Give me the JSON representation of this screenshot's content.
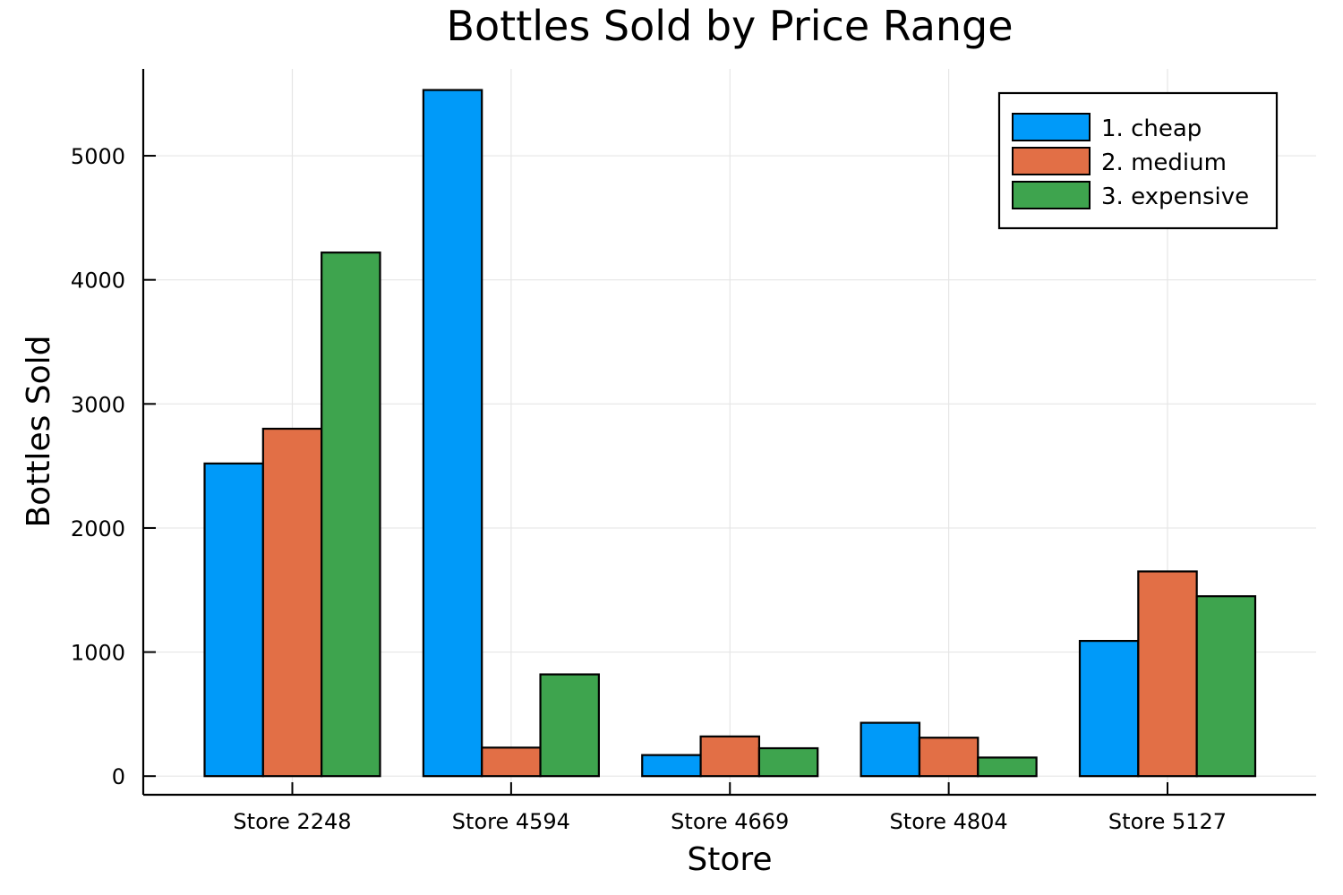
{
  "chart_data": {
    "type": "bar",
    "title": "Bottles Sold by Price Range",
    "xlabel": "Store",
    "ylabel": "Bottles Sold",
    "categories": [
      "Store 2248",
      "Store 4594",
      "Store 4669",
      "Store 4804",
      "Store 5127"
    ],
    "series": [
      {
        "name": "1. cheap",
        "color": "#009af9",
        "values": [
          2520,
          5530,
          170,
          430,
          1090
        ]
      },
      {
        "name": "2. medium",
        "color": "#e26f46",
        "values": [
          2800,
          230,
          320,
          310,
          1650
        ]
      },
      {
        "name": "3. expensive",
        "color": "#3ea44e",
        "values": [
          4220,
          820,
          225,
          150,
          1450
        ]
      }
    ],
    "ylim": [
      -150,
      5700
    ],
    "yticks": [
      0,
      1000,
      2000,
      3000,
      4000,
      5000
    ],
    "grid": true,
    "legend_position": "top-right"
  }
}
